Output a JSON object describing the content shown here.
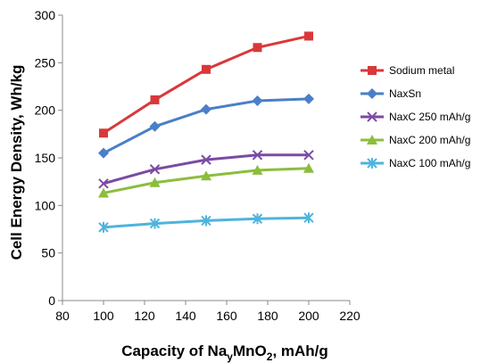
{
  "chart_data": {
    "type": "line",
    "xlabel": {
      "main": "Capacity of Na",
      "sub1": "y",
      "mid": "MnO",
      "sub2": "2",
      "tail": ", mAh/g"
    },
    "ylabel": "Cell Energy Density, Wh/kg",
    "xlim": [
      80,
      220
    ],
    "ylim": [
      0,
      300
    ],
    "xticks": [
      80,
      100,
      120,
      140,
      160,
      180,
      200,
      220
    ],
    "yticks": [
      0,
      50,
      100,
      150,
      200,
      250,
      300
    ],
    "grid": false,
    "legend": "right",
    "x": [
      100,
      125,
      150,
      175,
      200
    ],
    "series": [
      {
        "name": "Sodium metal",
        "color": "#d9383a",
        "marker": "square",
        "values": [
          176,
          211,
          243,
          266,
          278
        ]
      },
      {
        "name": "NaxSn",
        "color": "#4a7fc8",
        "marker": "diamond",
        "values": [
          155,
          183,
          201,
          210,
          212
        ]
      },
      {
        "name": "NaxC 250 mAh/g",
        "color": "#7b4aa3",
        "marker": "x",
        "values": [
          123,
          138,
          148,
          153,
          153
        ]
      },
      {
        "name": "NaxC 200 mAh/g",
        "color": "#8cbd3e",
        "marker": "triangle",
        "values": [
          113,
          124,
          131,
          137,
          139
        ]
      },
      {
        "name": "NaxC 100 mAh/g",
        "color": "#4fb4dd",
        "marker": "star",
        "values": [
          77,
          81,
          84,
          86,
          87
        ]
      }
    ]
  }
}
